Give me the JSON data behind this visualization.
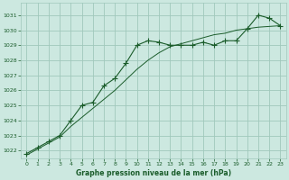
{
  "bg_color": "#cce8e0",
  "grid_color": "#a0c8bc",
  "line_color": "#1a5c2a",
  "xlabel": "Graphe pression niveau de la mer (hPa)",
  "ylim": [
    1021.5,
    1031.8
  ],
  "xlim": [
    -0.5,
    23.5
  ],
  "yticks": [
    1022,
    1023,
    1024,
    1025,
    1026,
    1027,
    1028,
    1029,
    1030,
    1031
  ],
  "xticks": [
    0,
    1,
    2,
    3,
    4,
    5,
    6,
    7,
    8,
    9,
    10,
    11,
    12,
    13,
    14,
    15,
    16,
    17,
    18,
    19,
    20,
    21,
    22,
    23
  ],
  "series1_x": [
    0,
    1,
    2,
    3,
    4,
    5,
    6,
    7,
    8,
    9,
    10,
    11,
    12,
    13,
    14,
    15,
    16,
    17,
    18,
    19,
    20,
    21,
    22,
    23
  ],
  "series1_y": [
    1021.8,
    1022.2,
    1022.6,
    1023.0,
    1024.0,
    1025.0,
    1025.2,
    1026.3,
    1026.8,
    1027.8,
    1029.0,
    1029.3,
    1029.2,
    1029.0,
    1029.0,
    1029.0,
    1029.2,
    1029.0,
    1029.3,
    1029.3,
    1030.1,
    1031.0,
    1030.8,
    1030.3
  ],
  "series2_x": [
    0,
    1,
    2,
    3,
    4,
    5,
    6,
    7,
    8,
    9,
    10,
    11,
    12,
    13,
    14,
    15,
    16,
    17,
    18,
    19,
    20,
    21,
    22,
    23
  ],
  "series2_y": [
    1021.7,
    1022.1,
    1022.5,
    1022.9,
    1023.6,
    1024.2,
    1024.8,
    1025.4,
    1026.0,
    1026.7,
    1027.4,
    1028.0,
    1028.5,
    1028.9,
    1029.1,
    1029.3,
    1029.5,
    1029.7,
    1029.8,
    1030.0,
    1030.1,
    1030.2,
    1030.25,
    1030.3
  ]
}
